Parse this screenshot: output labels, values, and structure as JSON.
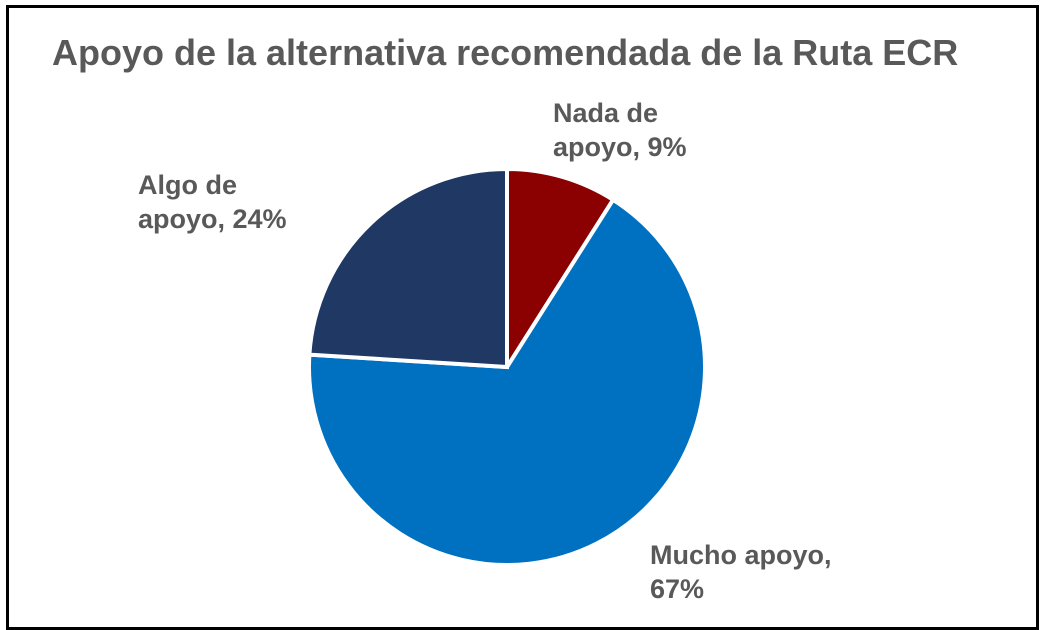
{
  "chart_data": {
    "type": "pie",
    "title": "Apoyo de la alternativa recomendada de la Ruta ECR",
    "slices": [
      {
        "label_lines": [
          "Nada de",
          "apoyo, 9%"
        ],
        "value": 9,
        "color": "#8b0000"
      },
      {
        "label_lines": [
          "Mucho apoyo,",
          "67%"
        ],
        "value": 67,
        "color": "#0070c0"
      },
      {
        "label_lines": [
          "Algo de",
          "apoyo, 24%"
        ],
        "value": 24,
        "color": "#1f3864"
      }
    ]
  }
}
